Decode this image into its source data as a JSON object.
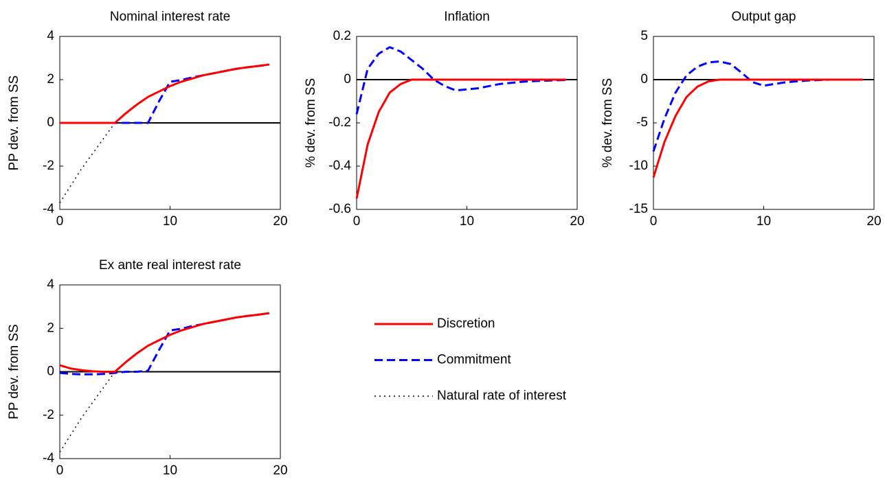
{
  "chart_data": [
    {
      "type": "line",
      "title": "Nominal interest rate",
      "y_label": "PP dev. from SS",
      "x": [
        0,
        1,
        2,
        3,
        4,
        5,
        6,
        7,
        8,
        9,
        10,
        11,
        12,
        13,
        14,
        15,
        16,
        17,
        18,
        19
      ],
      "xlim": [
        0,
        20
      ],
      "xticks": [
        0,
        10,
        20
      ],
      "ylim": [
        -4,
        4
      ],
      "yticks": [
        -4,
        -2,
        0,
        2,
        4
      ],
      "zero_line": true,
      "series": [
        {
          "name": "Discretion",
          "color": "#ff0000",
          "dash": "solid",
          "values": [
            0,
            0,
            0,
            0,
            0,
            0,
            0.45,
            0.85,
            1.2,
            1.45,
            1.7,
            1.9,
            2.05,
            2.2,
            2.3,
            2.4,
            2.5,
            2.57,
            2.63,
            2.7
          ]
        },
        {
          "name": "Commitment",
          "color": "#0000ff",
          "dash": "dashed",
          "values": [
            0,
            0,
            0,
            0,
            0,
            0,
            0,
            0,
            0,
            1.0,
            1.9,
            1.98,
            2.1,
            2.2,
            2.3,
            2.4,
            2.5,
            2.57,
            2.63,
            2.7
          ]
        },
        {
          "name": "Natural rate of interest",
          "color": "#000000",
          "dash": "dotted",
          "values": [
            -3.7,
            -2.9,
            -2.1,
            -1.4,
            -0.7,
            0,
            0.45,
            0.85,
            1.2,
            1.45,
            1.7,
            1.9,
            2.05,
            2.2,
            2.3,
            2.4,
            2.5,
            2.57,
            2.63,
            2.7
          ]
        }
      ]
    },
    {
      "type": "line",
      "title": "Inflation",
      "y_label": "% dev. from SS",
      "x": [
        0,
        1,
        2,
        3,
        4,
        5,
        6,
        7,
        8,
        9,
        10,
        11,
        12,
        13,
        14,
        15,
        16,
        17,
        18,
        19
      ],
      "xlim": [
        0,
        20
      ],
      "xticks": [
        0,
        10,
        20
      ],
      "ylim": [
        -0.6,
        0.2
      ],
      "yticks": [
        -0.6,
        -0.4,
        -0.2,
        0,
        0.2
      ],
      "zero_line": true,
      "series": [
        {
          "name": "Discretion",
          "color": "#ff0000",
          "dash": "solid",
          "values": [
            -0.55,
            -0.3,
            -0.15,
            -0.06,
            -0.02,
            0,
            0,
            0,
            0,
            0,
            0,
            0,
            0,
            0,
            0,
            0,
            0,
            0,
            0,
            0
          ]
        },
        {
          "name": "Commitment",
          "color": "#0000ff",
          "dash": "dashed",
          "values": [
            -0.16,
            0.05,
            0.12,
            0.15,
            0.13,
            0.09,
            0.05,
            0,
            -0.03,
            -0.05,
            -0.045,
            -0.04,
            -0.03,
            -0.02,
            -0.015,
            -0.01,
            -0.007,
            -0.005,
            -0.003,
            -0.002
          ]
        }
      ]
    },
    {
      "type": "line",
      "title": "Output gap",
      "y_label": "% dev. from SS",
      "x": [
        0,
        1,
        2,
        3,
        4,
        5,
        6,
        7,
        8,
        9,
        10,
        11,
        12,
        13,
        14,
        15,
        16,
        17,
        18,
        19
      ],
      "xlim": [
        0,
        20
      ],
      "xticks": [
        0,
        10,
        20
      ],
      "ylim": [
        -15,
        5
      ],
      "yticks": [
        -15,
        -10,
        -5,
        0,
        5
      ],
      "zero_line": true,
      "series": [
        {
          "name": "Discretion",
          "color": "#ff0000",
          "dash": "solid",
          "values": [
            -11.3,
            -7.2,
            -4.2,
            -2.0,
            -0.8,
            -0.2,
            0,
            0,
            0,
            0,
            0,
            0,
            0,
            0,
            0,
            0,
            0,
            0,
            0,
            0
          ]
        },
        {
          "name": "Commitment",
          "color": "#0000ff",
          "dash": "dashed",
          "values": [
            -8.3,
            -4.5,
            -1.5,
            0.5,
            1.5,
            2.0,
            2.1,
            1.8,
            0.8,
            -0.3,
            -0.7,
            -0.5,
            -0.3,
            -0.2,
            -0.1,
            -0.05,
            0,
            0,
            0,
            0
          ]
        }
      ]
    },
    {
      "type": "line",
      "title": "Ex ante real interest rate",
      "y_label": "PP dev. from SS",
      "x": [
        0,
        1,
        2,
        3,
        4,
        5,
        6,
        7,
        8,
        9,
        10,
        11,
        12,
        13,
        14,
        15,
        16,
        17,
        18,
        19
      ],
      "xlim": [
        0,
        20
      ],
      "xticks": [
        0,
        10,
        20
      ],
      "ylim": [
        -4,
        4
      ],
      "yticks": [
        -4,
        -2,
        0,
        2,
        4
      ],
      "zero_line": true,
      "series": [
        {
          "name": "Discretion",
          "color": "#ff0000",
          "dash": "solid",
          "values": [
            0.3,
            0.15,
            0.07,
            0.02,
            0,
            0,
            0.45,
            0.85,
            1.2,
            1.45,
            1.7,
            1.9,
            2.05,
            2.2,
            2.3,
            2.4,
            2.5,
            2.57,
            2.63,
            2.7
          ]
        },
        {
          "name": "Commitment",
          "color": "#0000ff",
          "dash": "dashed",
          "values": [
            -0.05,
            -0.1,
            -0.12,
            -0.12,
            -0.1,
            -0.05,
            0,
            0,
            0.05,
            1.0,
            1.9,
            1.98,
            2.1,
            2.2,
            2.3,
            2.4,
            2.5,
            2.57,
            2.63,
            2.7
          ]
        },
        {
          "name": "Natural rate of interest",
          "color": "#000000",
          "dash": "dotted",
          "values": [
            -3.7,
            -2.9,
            -2.1,
            -1.4,
            -0.7,
            0,
            0.45,
            0.85,
            1.2,
            1.45,
            1.7,
            1.9,
            2.05,
            2.2,
            2.3,
            2.4,
            2.5,
            2.57,
            2.63,
            2.7
          ]
        }
      ]
    }
  ]
}
